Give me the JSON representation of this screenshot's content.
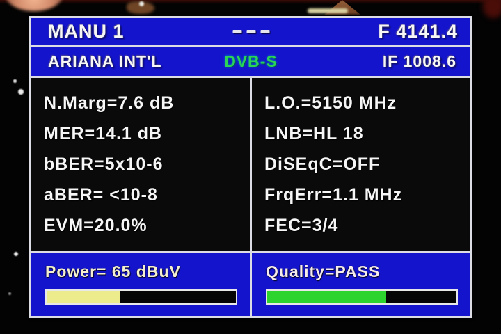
{
  "header": {
    "name": "MANU 1",
    "dashes_icon": "triple-dash",
    "frequency": "F 4141.4"
  },
  "subheader": {
    "channel": "ARIANA INT'L",
    "standard": "DVB-S",
    "if_frequency": "IF 1008.6"
  },
  "measurements": {
    "left": [
      "N.Marg=7.6 dB",
      "MER=14.1 dB",
      "bBER=5x10-6",
      "aBER= <10-8",
      "EVM=20.0%"
    ],
    "right": [
      "L.O.=5150 MHz",
      "LNB=HL 18",
      "DiSEqC=OFF",
      "FrqErr=1.1 MHz",
      "FEC=3/4"
    ]
  },
  "power": {
    "label": "Power= 65 dBuV",
    "percent": 39,
    "bar_color": "#ecec8c"
  },
  "quality": {
    "label": "Quality=PASS",
    "percent": 63,
    "bar_color": "#2ed42e"
  },
  "colors": {
    "panel_blue": "#1414cc",
    "frame_white": "#dcdce4",
    "main_black": "#0a0a0a",
    "standard_green": "#2bd456",
    "power_text": "#f4f0cf",
    "text_white": "#f6f6f6"
  }
}
